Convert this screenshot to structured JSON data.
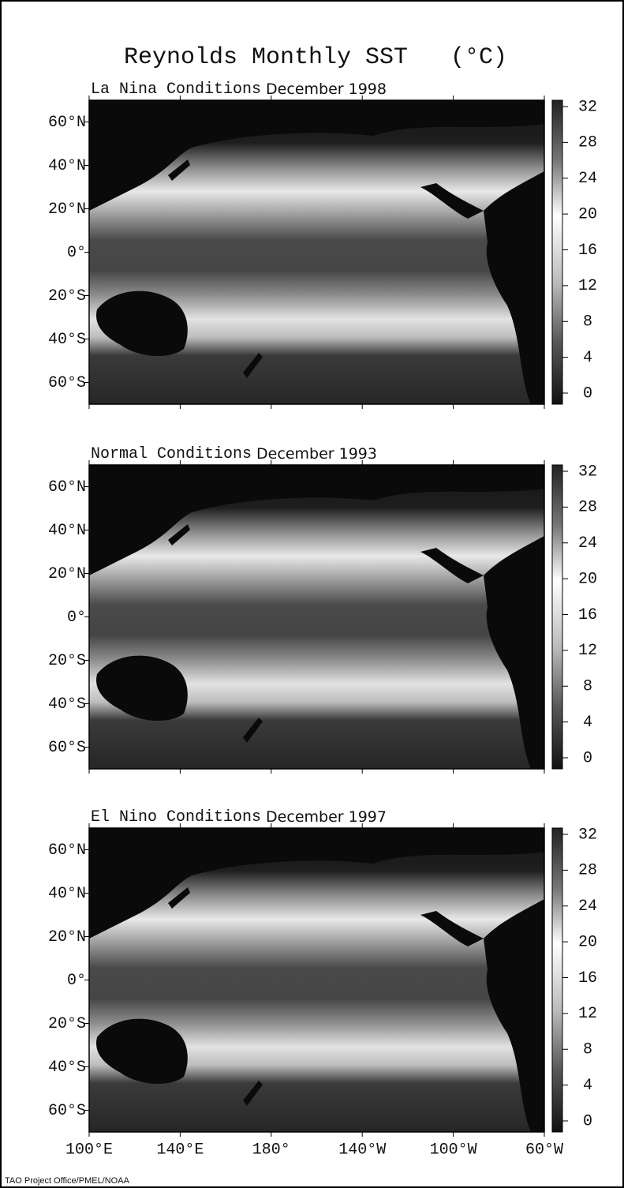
{
  "title": "Reynolds Monthly SST   (°C)",
  "panels": [
    {
      "label": "La Nina Conditions",
      "date": "December 1998"
    },
    {
      "label": "Normal Conditions",
      "date": "December 1993"
    },
    {
      "label": "El Nino Conditions",
      "date": "December 1997"
    }
  ],
  "lat_labels": [
    "60°N",
    "40°N",
    "20°N",
    "0°",
    "20°S",
    "40°S",
    "60°S"
  ],
  "lon_labels": [
    "100°E",
    "140°E",
    "180°",
    "140°W",
    "100°W",
    "60°W"
  ],
  "colorbar_ticks": [
    32,
    28,
    24,
    20,
    16,
    12,
    8,
    4,
    0
  ],
  "credit": "TAO Project Office/PMEL/NOAA"
}
